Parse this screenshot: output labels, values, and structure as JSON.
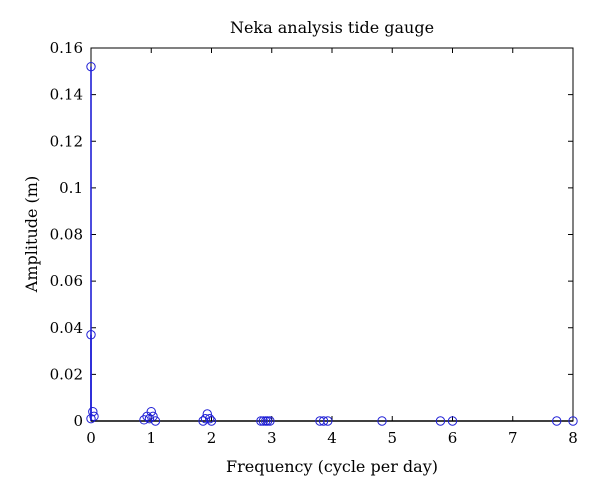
{
  "chart_data": {
    "type": "scatter",
    "title": "Neka analysis tide gauge",
    "xlabel": "Frequency (cycle per day)",
    "ylabel": "Amplitude (m)",
    "xlim": [
      0,
      8
    ],
    "ylim": [
      0,
      0.16
    ],
    "x_ticks": [
      "0",
      "1",
      "2",
      "3",
      "4",
      "5",
      "6",
      "7",
      "8"
    ],
    "y_ticks": [
      "0",
      "0.02",
      "0.04",
      "0.06",
      "0.08",
      "0.1",
      "0.12",
      "0.14",
      "0.16"
    ],
    "grid": false,
    "marker": "open-circle",
    "colors": {
      "series": "#1f1fd6",
      "axis": "#000000"
    },
    "stems": [
      {
        "x": 0.0,
        "y": 0.152
      },
      {
        "x": 0.0,
        "y": 0.037
      }
    ],
    "points": [
      {
        "x": 0.0,
        "y": 0.152
      },
      {
        "x": 0.0,
        "y": 0.037
      },
      {
        "x": 0.03,
        "y": 0.004
      },
      {
        "x": 0.05,
        "y": 0.002
      },
      {
        "x": 0.0,
        "y": 0.001
      },
      {
        "x": 0.88,
        "y": 0.0005
      },
      {
        "x": 0.93,
        "y": 0.002
      },
      {
        "x": 0.97,
        "y": 0.001
      },
      {
        "x": 1.0,
        "y": 0.004
      },
      {
        "x": 1.03,
        "y": 0.002
      },
      {
        "x": 1.07,
        "y": 0.0
      },
      {
        "x": 1.86,
        "y": 0.0
      },
      {
        "x": 1.9,
        "y": 0.001
      },
      {
        "x": 1.93,
        "y": 0.003
      },
      {
        "x": 1.97,
        "y": 0.001
      },
      {
        "x": 2.0,
        "y": 0.0
      },
      {
        "x": 2.82,
        "y": 0.0
      },
      {
        "x": 2.86,
        "y": 0.0
      },
      {
        "x": 2.9,
        "y": 0.0
      },
      {
        "x": 2.93,
        "y": 0.0
      },
      {
        "x": 2.97,
        "y": 0.0
      },
      {
        "x": 3.8,
        "y": 0.0
      },
      {
        "x": 3.86,
        "y": 0.0
      },
      {
        "x": 3.93,
        "y": 0.0
      },
      {
        "x": 4.83,
        "y": 0.0
      },
      {
        "x": 5.8,
        "y": 0.0
      },
      {
        "x": 6.0,
        "y": 0.0
      },
      {
        "x": 7.73,
        "y": 0.0
      },
      {
        "x": 8.0,
        "y": 0.0
      }
    ]
  }
}
